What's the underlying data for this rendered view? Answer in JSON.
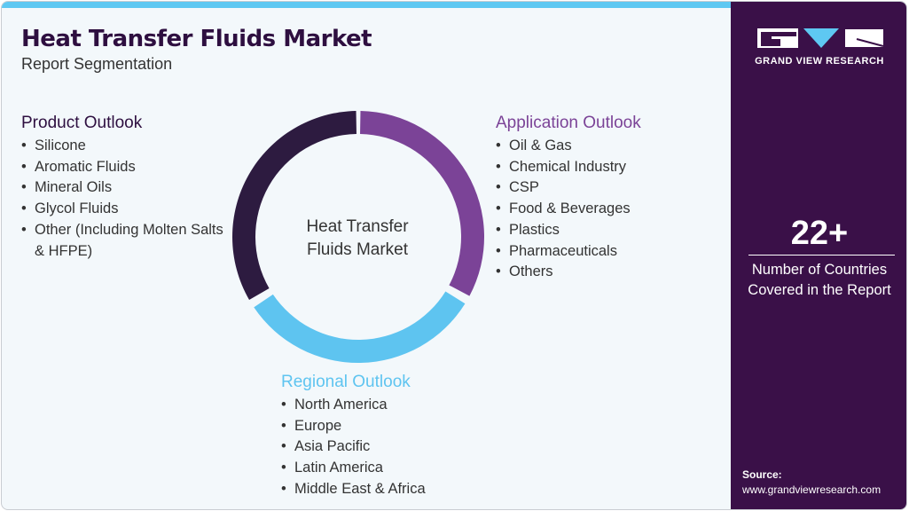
{
  "title": "Heat Transfer Fluids Market",
  "subtitle": "Report Segmentation",
  "center_label": [
    "Heat Transfer",
    "Fluids Market"
  ],
  "colors": {
    "product": "#2d1b40",
    "application": "#7b4397",
    "regional": "#5ec4f0",
    "sidebar": "#3a1048",
    "accent": "#5ec8f2"
  },
  "product": {
    "title": "Product Outlook",
    "items": [
      "Silicone",
      "Aromatic Fluids",
      "Mineral Oils",
      "Glycol Fluids",
      "Other (Including Molten Salts & HFPE)"
    ]
  },
  "application": {
    "title": "Application Outlook",
    "items": [
      "Oil & Gas",
      "Chemical Industry",
      "CSP",
      "Food & Beverages",
      "Plastics",
      "Pharmaceuticals",
      "Others"
    ]
  },
  "regional": {
    "title": "Regional Outlook",
    "items": [
      "North America",
      "Europe",
      "Asia Pacific",
      "Latin America",
      "Middle East & Africa"
    ]
  },
  "brand": {
    "name": "GRAND VIEW RESEARCH"
  },
  "stat": {
    "value": "22+",
    "label_line1": "Number of Countries",
    "label_line2": "Covered in the Report"
  },
  "source": {
    "label": "Source:",
    "url": "www.grandviewresearch.com"
  }
}
